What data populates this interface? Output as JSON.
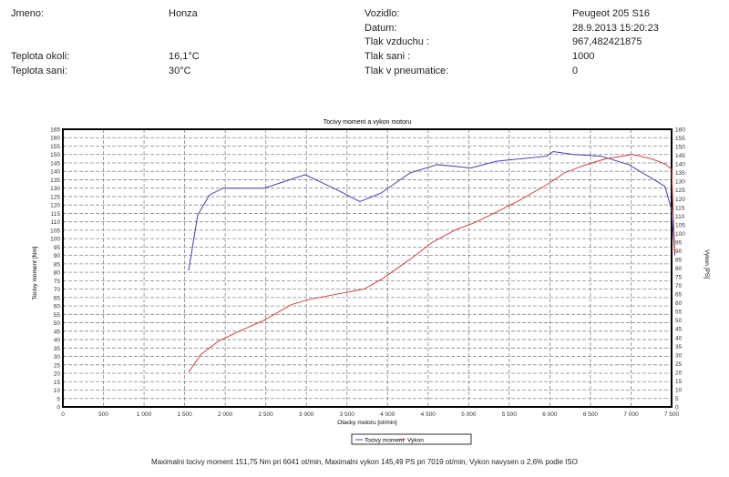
{
  "info": {
    "jmeno_label": "Jmeno:",
    "jmeno": "Honza",
    "teplota_okoli_label": "Teplota okoli:",
    "teplota_okoli": "16,1°C",
    "teplota_sani_label": "Teplota sani:",
    "teplota_sani": "30°C",
    "vozidlo_label": "Vozidlo:",
    "vozidlo": "Peugeot 205 S16",
    "datum_label": "Datum:",
    "datum": "28.9.2013 15:20:23",
    "tlak_vzduchu_label": "Tlak vzduchu :",
    "tlak_vzduchu": "967,482421875",
    "tlak_sani_label": "Tlak sani :",
    "tlak_sani": "1000",
    "tlak_pneu_label": "Tlak v pneumatice:",
    "tlak_pneu": "0"
  },
  "footer": "Maximalni tocivy moment 151,75 Nm pri 6041 ot/min,  Maximalni vykon 145,49 PS pri 7019 ot/min,  Vykon navysen o 2,6% podle ISO",
  "chart_data": {
    "type": "line",
    "title": "Tocivy moment a vykon motoru",
    "xlabel": "Otacky motoru [ot/min]",
    "ylabel": "Tocivy moment [Nm]",
    "y2label": "Vykon [PS]",
    "xlim": [
      0,
      7500
    ],
    "ylim": [
      0,
      165
    ],
    "y2lim": [
      0,
      160
    ],
    "xticks": [
      0,
      500,
      1000,
      1500,
      2000,
      2500,
      3000,
      3500,
      4000,
      4500,
      5000,
      5500,
      6000,
      6500,
      7000,
      7500
    ],
    "xtick_labels": [
      "0",
      "500",
      "1 000",
      "1 500",
      "2 000",
      "2 500",
      "3 000",
      "3 500",
      "4 000",
      "4 500",
      "5 000",
      "5 500",
      "6 000",
      "6 500",
      "7 000",
      "7 500"
    ],
    "grid": true,
    "legend_position": "bottom-center",
    "series": [
      {
        "name": "Tocivy moment",
        "axis": "left",
        "color": "#4040b0",
        "x": [
          1549,
          1661,
          1807,
          1975,
          2480,
          2985,
          3378,
          3659,
          3917,
          4276,
          4613,
          5028,
          5342,
          5960,
          6041,
          6296,
          6633,
          6970,
          7250,
          7419,
          7500,
          7540
        ],
        "y": [
          81,
          114,
          126,
          130,
          130,
          138,
          129,
          122,
          127,
          139,
          144,
          142,
          146,
          149,
          151.75,
          150,
          149,
          144,
          136,
          131,
          117,
          90
        ]
      },
      {
        "name": "Vykon",
        "axis": "right",
        "color": "#d04040",
        "x": [
          1549,
          1695,
          1919,
          2144,
          2480,
          2817,
          3041,
          3490,
          3715,
          3940,
          4276,
          4557,
          4837,
          5062,
          5286,
          5623,
          5960,
          6184,
          6409,
          6689,
          7019,
          7250,
          7419,
          7500,
          7540
        ],
        "y": [
          20,
          30,
          38,
          43,
          50,
          59,
          62,
          66,
          68,
          74,
          85,
          95,
          102,
          106,
          111,
          119,
          128,
          135,
          139,
          143,
          145.49,
          143,
          140,
          137,
          88
        ]
      }
    ]
  }
}
